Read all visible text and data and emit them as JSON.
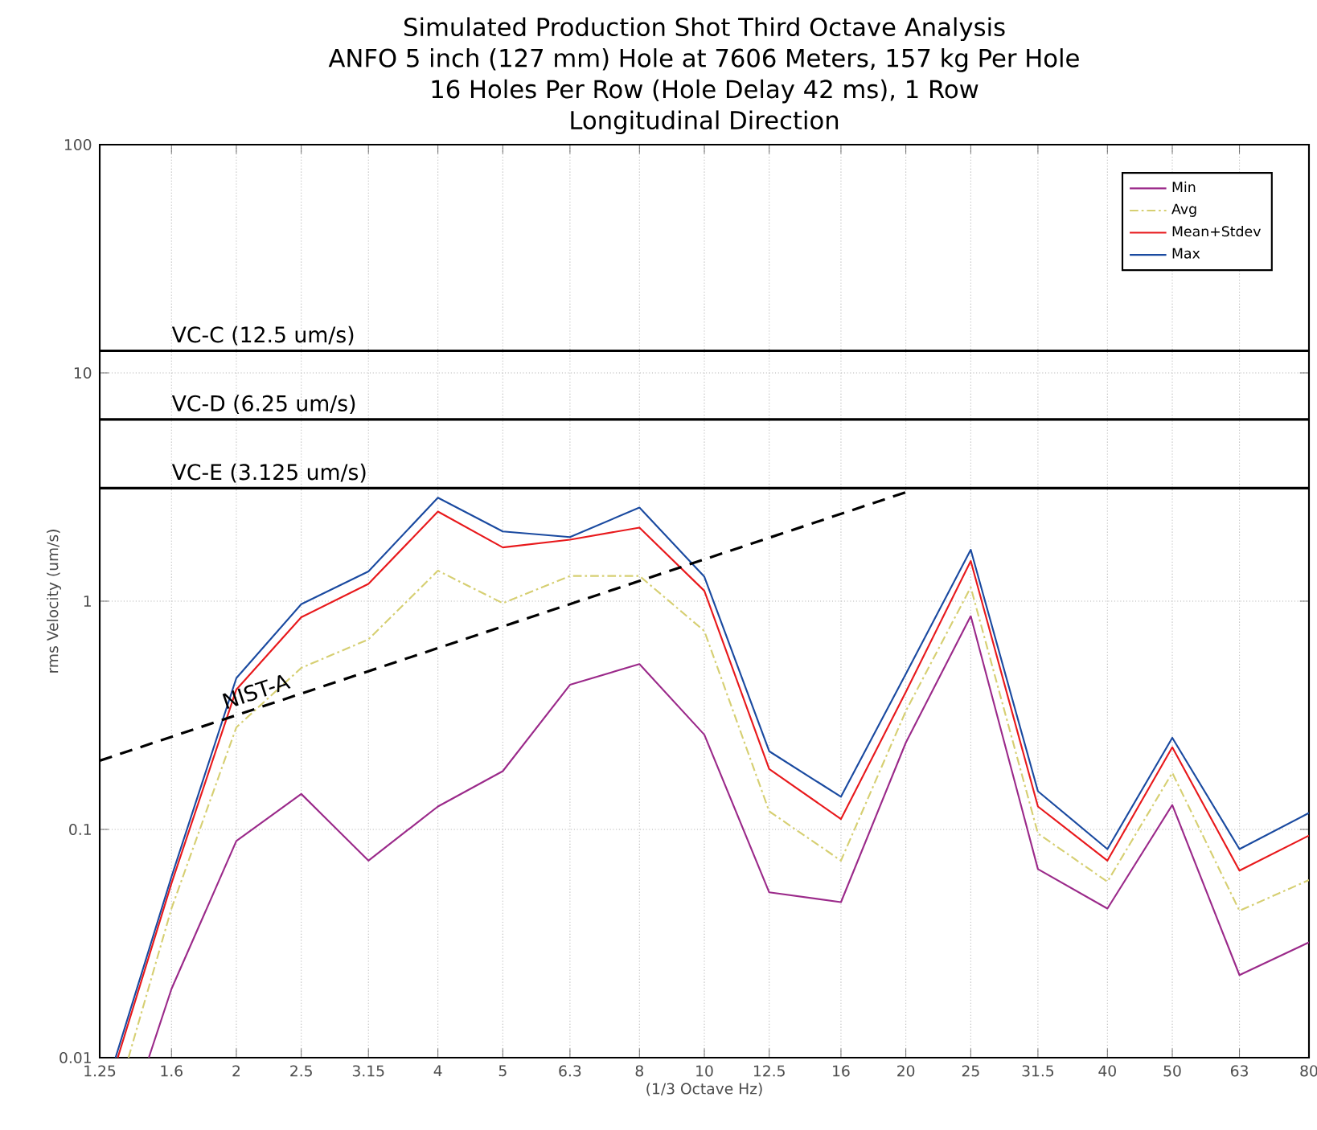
{
  "chart_data": {
    "type": "line",
    "title": [
      "Simulated Production Shot Third Octave Analysis",
      "ANFO 5 inch (127 mm) Hole at 7606 Meters, 157 kg Per Hole",
      "16 Holes Per Row (Hole Delay 42 ms), 1 Row",
      "Longitudinal Direction"
    ],
    "xlabel": "(1/3 Octave Hz)",
    "ylabel": "rms Velocity (um/s)",
    "log": "xy",
    "xlim": [
      1.25,
      80
    ],
    "ylim": [
      0.01,
      100
    ],
    "xticks": [
      1.25,
      1.6,
      2,
      2.5,
      3.15,
      4,
      5,
      6.3,
      8,
      10,
      12.5,
      16,
      20,
      25,
      31.5,
      40,
      50,
      63,
      80
    ],
    "yticks": [
      0.01,
      0.1,
      1,
      10,
      100
    ],
    "grid": true,
    "legend": "top right",
    "series": [
      {
        "name": "Min",
        "color": "#9b2a8a",
        "line_style": "solid",
        "x": [
          1.48,
          1.6,
          2,
          2.5,
          3.15,
          4,
          5,
          6.3,
          8,
          10,
          12.5,
          16,
          20,
          25,
          31.5,
          40,
          50,
          63,
          80
        ],
        "values": [
          0.01,
          0.02,
          0.089,
          0.143,
          0.073,
          0.126,
          0.18,
          0.43,
          0.53,
          0.26,
          0.053,
          0.048,
          0.24,
          0.86,
          0.067,
          0.045,
          0.128,
          0.023,
          0.032
        ]
      },
      {
        "name": "Avg",
        "color": "#d6cf72",
        "line_style": "dashdot",
        "x": [
          1.38,
          1.6,
          2,
          2.5,
          3.15,
          4,
          5,
          6.3,
          8,
          10,
          12.5,
          16,
          20,
          25,
          31.5,
          40,
          50,
          63,
          80
        ],
        "values": [
          0.01,
          0.045,
          0.28,
          0.51,
          0.68,
          1.36,
          0.98,
          1.29,
          1.29,
          0.74,
          0.12,
          0.073,
          0.33,
          1.15,
          0.096,
          0.059,
          0.177,
          0.044,
          0.06
        ]
      },
      {
        "name": "Mean+Stdev",
        "color": "#e8191c",
        "line_style": "solid",
        "x": [
          1.33,
          1.6,
          2,
          2.5,
          3.15,
          4,
          5,
          6.3,
          8,
          10,
          12.5,
          16,
          20,
          25,
          31.5,
          40,
          50,
          63,
          80
        ],
        "values": [
          0.01,
          0.058,
          0.41,
          0.85,
          1.19,
          2.47,
          1.72,
          1.86,
          2.1,
          1.11,
          0.184,
          0.111,
          0.4,
          1.5,
          0.126,
          0.073,
          0.229,
          0.066,
          0.094
        ]
      },
      {
        "name": "Max",
        "color": "#1a4aa0",
        "line_style": "solid",
        "x": [
          1.32,
          1.6,
          2,
          2.5,
          3.15,
          4,
          5,
          6.3,
          8,
          10,
          12.5,
          16,
          20,
          25,
          31.5,
          40,
          50,
          63,
          80
        ],
        "values": [
          0.01,
          0.062,
          0.46,
          0.97,
          1.35,
          2.84,
          2.02,
          1.91,
          2.57,
          1.28,
          0.22,
          0.139,
          0.48,
          1.68,
          0.147,
          0.082,
          0.252,
          0.082,
          0.118
        ]
      },
      {
        "name": "NIST-A",
        "color": "#000000",
        "line_style": "dashed",
        "x": [
          1.25,
          20
        ],
        "values": [
          0.2,
          3.0
        ]
      }
    ],
    "ref_lines": [
      {
        "axis": "y",
        "value": 12.5,
        "label": "VC-C (12.5 um/s)",
        "color": "#000000"
      },
      {
        "axis": "y",
        "value": 6.25,
        "label": "VC-D (6.25 um/s)",
        "color": "#000000"
      },
      {
        "axis": "y",
        "value": 3.125,
        "label": "VC-E (3.125 um/s)",
        "color": "#000000"
      }
    ]
  }
}
